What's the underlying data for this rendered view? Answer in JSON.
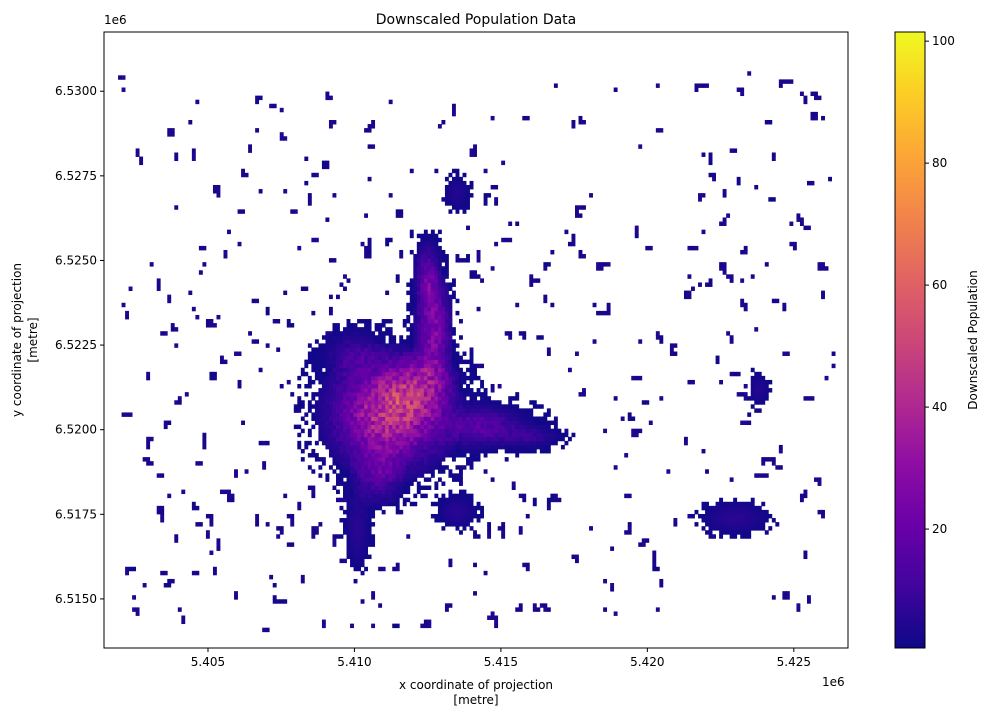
{
  "chart_data": {
    "type": "heatmap",
    "title": "Downscaled Population Data",
    "xlabel_line1": "x coordinate of projection",
    "xlabel_line2": "[metre]",
    "ylabel_line1": "y coordinate of projection",
    "ylabel_line2": "[metre]",
    "x_offset_label": "1e6",
    "y_offset_label": "1e6",
    "xlim": [
      5.40145,
      5.42685
    ],
    "ylim": [
      6.51355,
      6.53175
    ],
    "x_ticks": [
      {
        "value": 5.405,
        "label": "5.405"
      },
      {
        "value": 5.41,
        "label": "5.410"
      },
      {
        "value": 5.415,
        "label": "5.415"
      },
      {
        "value": 5.42,
        "label": "5.420"
      },
      {
        "value": 5.425,
        "label": "5.425"
      }
    ],
    "y_ticks": [
      {
        "value": 6.515,
        "label": "6.5150"
      },
      {
        "value": 6.5175,
        "label": "6.5175"
      },
      {
        "value": 6.52,
        "label": "6.5200"
      },
      {
        "value": 6.5225,
        "label": "6.5225"
      },
      {
        "value": 6.525,
        "label": "6.5250"
      },
      {
        "value": 6.5275,
        "label": "6.5275"
      },
      {
        "value": 6.53,
        "label": "6.5300"
      }
    ],
    "colorbar": {
      "label": "Downscaled Population",
      "range": [
        0.5,
        101.5
      ],
      "colormap": "plasma",
      "ticks": [
        {
          "value": 20,
          "label": "20"
        },
        {
          "value": 40,
          "label": "40"
        },
        {
          "value": 60,
          "label": "60"
        },
        {
          "value": 80,
          "label": "80"
        },
        {
          "value": 100,
          "label": "100"
        }
      ]
    },
    "grid": false,
    "blobs": [
      {
        "x": 5.4112,
        "y": 6.5205,
        "sx": 0.0011,
        "sy": 0.0009,
        "amp": 45,
        "spread": 2.1
      },
      {
        "x": 5.4122,
        "y": 6.5213,
        "sx": 0.0008,
        "sy": 0.0006,
        "amp": 20,
        "spread": 1.6
      },
      {
        "x": 5.4143,
        "y": 6.5201,
        "sx": 0.0009,
        "sy": 0.00035,
        "amp": 16,
        "spread": 2.0
      },
      {
        "x": 5.4127,
        "y": 6.5229,
        "sx": 0.00035,
        "sy": 0.00095,
        "amp": 26,
        "spread": 1.8
      },
      {
        "x": 5.4125,
        "y": 6.5245,
        "sx": 0.00025,
        "sy": 0.0006,
        "amp": 18,
        "spread": 1.9
      },
      {
        "x": 5.4108,
        "y": 6.5187,
        "sx": 0.0005,
        "sy": 0.0005,
        "amp": 15,
        "spread": 1.8
      },
      {
        "x": 5.4101,
        "y": 6.5171,
        "sx": 0.00025,
        "sy": 0.0007,
        "amp": 6,
        "spread": 1.6
      },
      {
        "x": 5.4135,
        "y": 6.5176,
        "sx": 0.0004,
        "sy": 0.0003,
        "amp": 6,
        "spread": 1.5
      },
      {
        "x": 5.416,
        "y": 6.5198,
        "sx": 0.0006,
        "sy": 0.0002,
        "amp": 7,
        "spread": 1.7
      },
      {
        "x": 5.41,
        "y": 6.5222,
        "sx": 0.0006,
        "sy": 0.0004,
        "amp": 10,
        "spread": 1.8
      },
      {
        "x": 5.423,
        "y": 6.5174,
        "sx": 0.0007,
        "sy": 0.0003,
        "amp": 6,
        "spread": 1.5
      },
      {
        "x": 5.4135,
        "y": 6.527,
        "sx": 0.00025,
        "sy": 0.0003,
        "amp": 5,
        "spread": 1.5
      },
      {
        "x": 5.4238,
        "y": 6.5212,
        "sx": 0.0002,
        "sy": 0.0003,
        "amp": 5,
        "spread": 1.5
      }
    ],
    "scatter_density": {
      "x_range": [
        5.402,
        5.4265
      ],
      "y_range": [
        6.514,
        6.5305
      ],
      "base": 0.12,
      "near_center": 0.25
    }
  }
}
